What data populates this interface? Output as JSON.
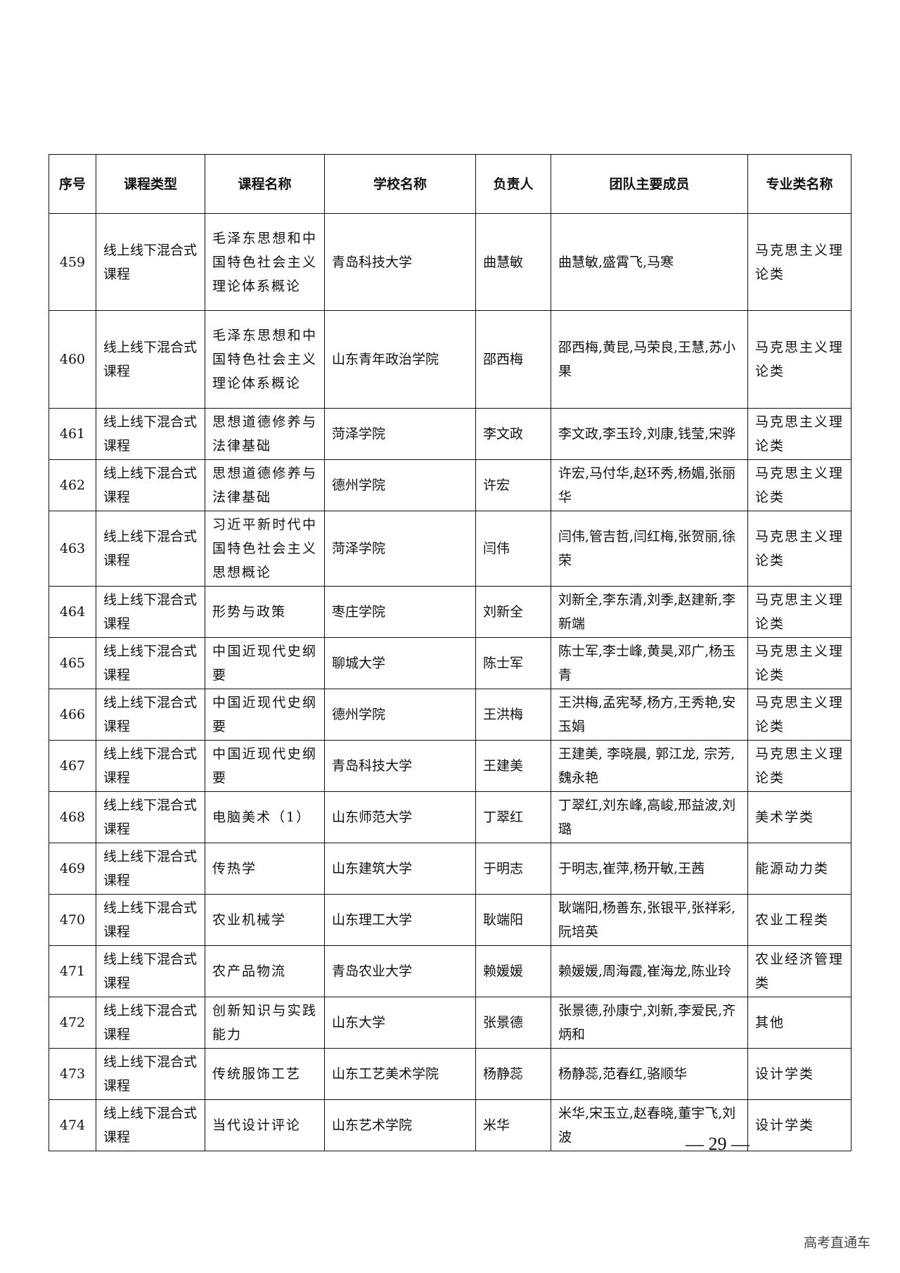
{
  "table": {
    "headers": [
      "序号",
      "课程类型",
      "课程名称",
      "学校名称",
      "负责人",
      "团队主要成员",
      "专业类名称"
    ],
    "rows": [
      [
        "459",
        "线上线下混合式课程",
        "毛泽东思想和中国特色社会主义理论体系概论",
        "青岛科技大学",
        "曲慧敏",
        "曲慧敏,盛霄飞,马寒",
        "马克思主义理论类"
      ],
      [
        "460",
        "线上线下混合式课程",
        "毛泽东思想和中国特色社会主义理论体系概论",
        "山东青年政治学院",
        "邵西梅",
        "邵西梅,黄昆,马荣良,王慧,苏小果",
        "马克思主义理论类"
      ],
      [
        "461",
        "线上线下混合式课程",
        "思想道德修养与法律基础",
        "菏泽学院",
        "李文政",
        "李文政,李玉玲,刘康,钱莹,宋骅",
        "马克思主义理论类"
      ],
      [
        "462",
        "线上线下混合式课程",
        "思想道德修养与法律基础",
        "德州学院",
        "许宏",
        "许宏,马付华,赵环秀,杨媚,张丽华",
        "马克思主义理论类"
      ],
      [
        "463",
        "线上线下混合式课程",
        "习近平新时代中国特色社会主义思想概论",
        "菏泽学院",
        "闫伟",
        "闫伟,管吉哲,闫红梅,张贺丽,徐荣",
        "马克思主义理论类"
      ],
      [
        "464",
        "线上线下混合式课程",
        "形势与政策",
        "枣庄学院",
        "刘新全",
        "刘新全,李东清,刘季,赵建新,李新端",
        "马克思主义理论类"
      ],
      [
        "465",
        "线上线下混合式课程",
        "中国近现代史纲要",
        "聊城大学",
        "陈士军",
        "陈士军,李士峰,黄昊,邓广,杨玉青",
        "马克思主义理论类"
      ],
      [
        "466",
        "线上线下混合式课程",
        "中国近现代史纲要",
        "德州学院",
        "王洪梅",
        "王洪梅,孟宪琴,杨方,王秀艳,安玉娟",
        "马克思主义理论类"
      ],
      [
        "467",
        "线上线下混合式课程",
        "中国近现代史纲要",
        "青岛科技大学",
        "王建美",
        "王建美, 李晓晨, 郭江龙, 宗芳, 魏永艳",
        "马克思主义理论类"
      ],
      [
        "468",
        "线上线下混合式课程",
        "电脑美术（1）",
        "山东师范大学",
        "丁翠红",
        "丁翠红,刘东峰,高峻,邢益波,刘璐",
        "美术学类"
      ],
      [
        "469",
        "线上线下混合式课程",
        "传热学",
        "山东建筑大学",
        "于明志",
        "于明志,崔萍,杨开敏,王茜",
        "能源动力类"
      ],
      [
        "470",
        "线上线下混合式课程",
        "农业机械学",
        "山东理工大学",
        "耿端阳",
        "耿端阳,杨善东,张银平,张祥彩,阮培英",
        "农业工程类"
      ],
      [
        "471",
        "线上线下混合式课程",
        "农产品物流",
        "青岛农业大学",
        "赖媛媛",
        "赖媛媛,周海霞,崔海龙,陈业玲",
        "农业经济管理类"
      ],
      [
        "472",
        "线上线下混合式课程",
        "创新知识与实践能力",
        "山东大学",
        "张景德",
        "张景德,孙康宁,刘新,李爱民,齐炳和",
        "其他"
      ],
      [
        "473",
        "线上线下混合式课程",
        "传统服饰工艺",
        "山东工艺美术学院",
        "杨静蕊",
        "杨静蕊,范春红,骆顺华",
        "设计学类"
      ],
      [
        "474",
        "线上线下混合式课程",
        "当代设计评论",
        "山东艺术学院",
        "米华",
        "米华,宋玉立,赵春晓,董宇飞,刘波",
        "设计学类"
      ]
    ]
  },
  "page_number": "— 29 —",
  "watermark": "高考直通车"
}
